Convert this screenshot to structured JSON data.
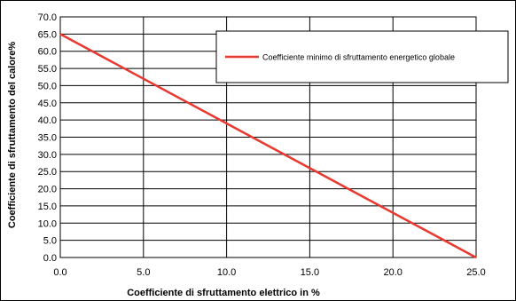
{
  "chart_data": {
    "type": "line",
    "title": "",
    "xlabel": "Coefficiente di sfruttamento elettrico in %",
    "ylabel": "Coefficiente di sfruttamento del calore%",
    "xlim": [
      0,
      25
    ],
    "ylim": [
      0,
      70
    ],
    "xticks": [
      "0.0",
      "5.0",
      "10.0",
      "15.0",
      "20.0",
      "25.0"
    ],
    "xtick_values": [
      0,
      5,
      10,
      15,
      20,
      25
    ],
    "yticks": [
      "0.0",
      "5.0",
      "10.0",
      "15.0",
      "20.0",
      "25.0",
      "30.0",
      "35.0",
      "40.0",
      "45.0",
      "50.0",
      "55.0",
      "60.0",
      "65.0",
      "70.0"
    ],
    "ytick_values": [
      0,
      5,
      10,
      15,
      20,
      25,
      30,
      35,
      40,
      45,
      50,
      55,
      60,
      65,
      70
    ],
    "grid": true,
    "legend_position": "top-right",
    "series": [
      {
        "name": "Coefficiente minimo di sfruttamento energetico globale",
        "color": "#e8382f",
        "x": [
          0,
          25
        ],
        "y": [
          65,
          0
        ]
      }
    ]
  }
}
